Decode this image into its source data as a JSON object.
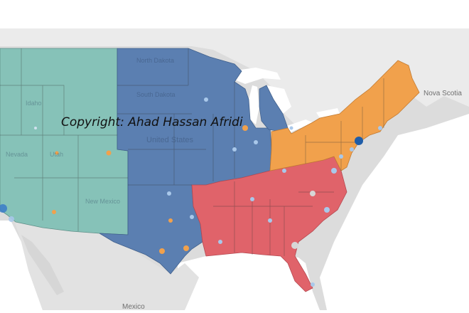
{
  "watermark": "Copyright: Ahad Hassan Afridi",
  "labels": {
    "mexico": "Mexico",
    "nova_scotia": "Nova Scotia",
    "united_states": "United States",
    "states": {
      "north_dakota": "North Dakota",
      "south_dakota": "South Dakota",
      "nevada": "Nevada",
      "utah": "Utah",
      "new_mexico": "New Mexico",
      "idaho": "Idaho"
    }
  },
  "region_colors": {
    "west": "#86c2b8",
    "central": "#5b7fb1",
    "southeast": "#e0636a",
    "northeast": "#f1a14c",
    "land": "#dcdcdc",
    "water": "#ffffff",
    "canada": "#ebebeb"
  }
}
